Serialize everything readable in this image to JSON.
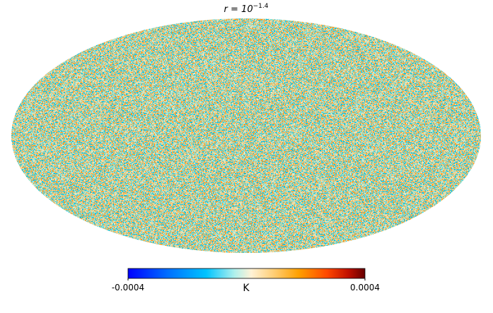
{
  "title": "r = 10",
  "title_exponent": "−1.4",
  "colorbar": {
    "label": "K",
    "clim": [
      -0.0004,
      0.0004
    ],
    "ticks": [
      -0.0004,
      0.0004
    ]
  }
}
